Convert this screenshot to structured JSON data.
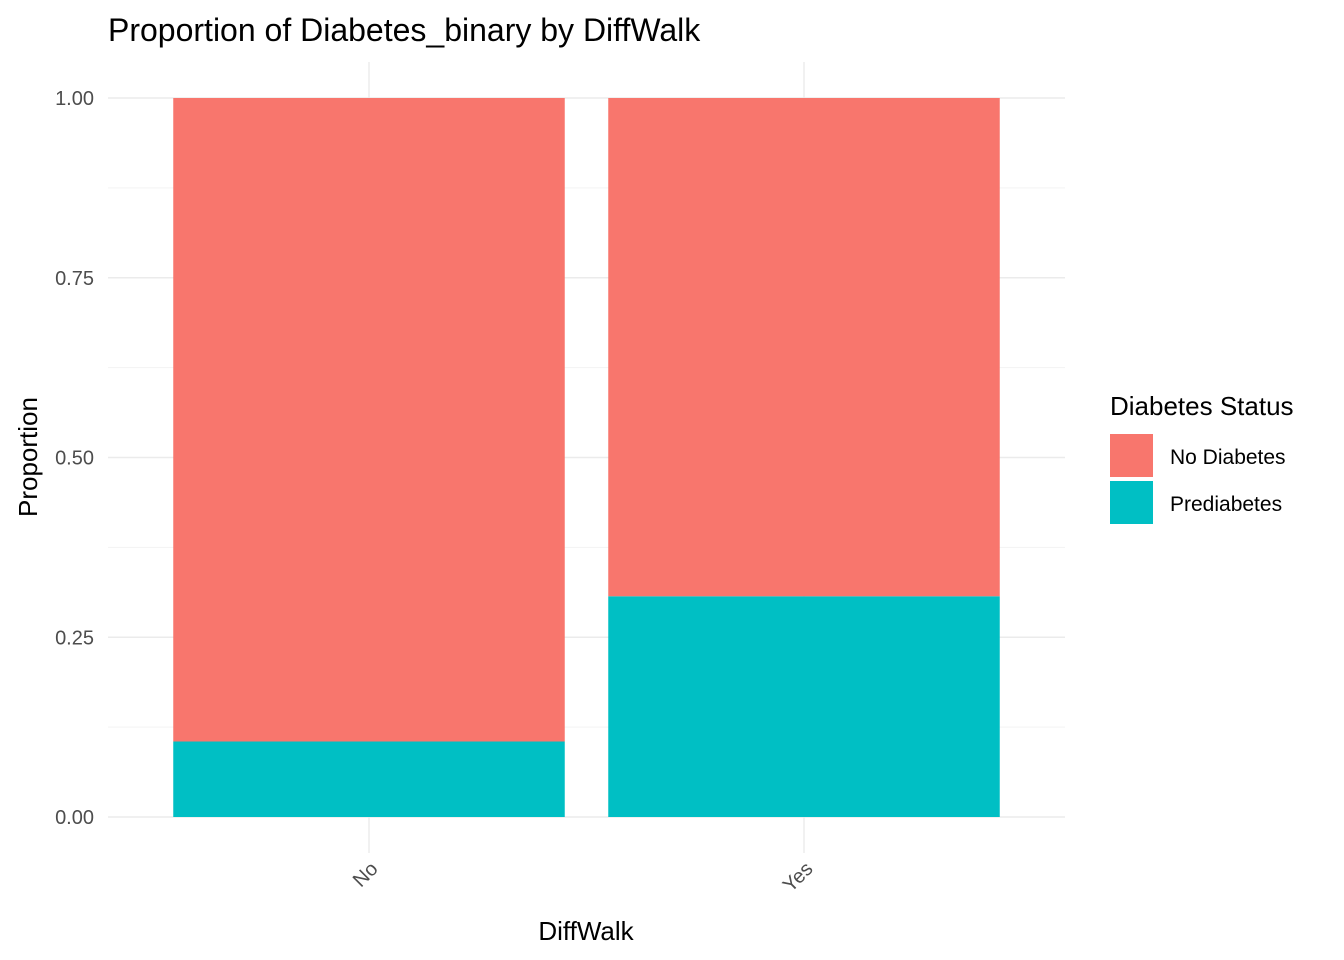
{
  "chart_data": {
    "type": "bar",
    "stacked": true,
    "title": "Proportion of Diabetes_binary by DiffWalk",
    "xlabel": "DiffWalk",
    "ylabel": "Proportion",
    "categories": [
      "No",
      "Yes"
    ],
    "ylim": [
      0,
      1
    ],
    "yticks": [
      "0.00",
      "0.25",
      "0.50",
      "0.75",
      "1.00"
    ],
    "grid": true,
    "legend": {
      "title": "Diabetes Status",
      "position": "right"
    },
    "series": [
      {
        "name": "No Diabetes",
        "color": "#F8766D",
        "values": [
          0.895,
          0.693
        ]
      },
      {
        "name": "Prediabetes",
        "color": "#00BFC4",
        "values": [
          0.105,
          0.307
        ]
      }
    ]
  }
}
